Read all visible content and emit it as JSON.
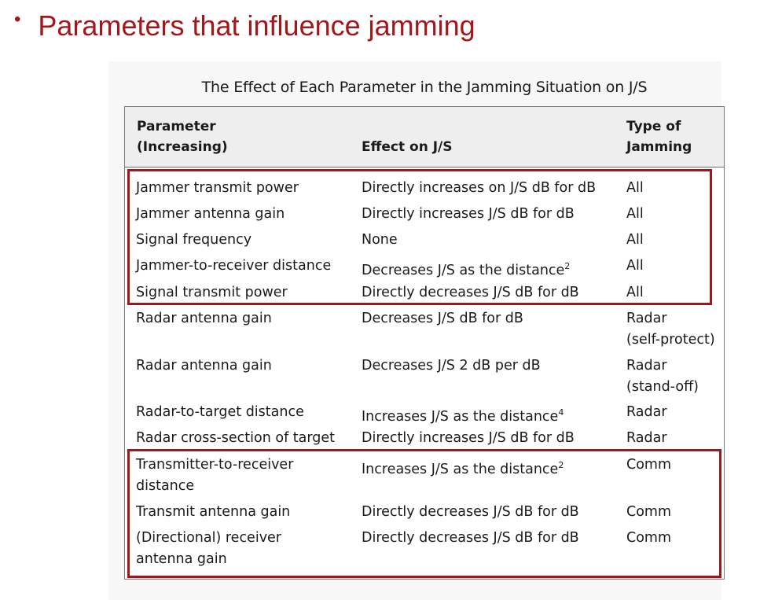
{
  "slide": {
    "bullet_text": "Parameters that influence jamming"
  },
  "table": {
    "caption": "The Effect of Each Parameter in the Jamming Situation on J/S",
    "headers": {
      "param_line1": "Parameter",
      "param_line2": "(Increasing)",
      "effect": "Effect on J/S",
      "type_line1": "Type of",
      "type_line2": "Jamming"
    },
    "rows": [
      {
        "param": [
          "Jammer transmit power"
        ],
        "effect": "Directly increases on J/S dB for dB",
        "sup": "",
        "type": [
          "All"
        ]
      },
      {
        "param": [
          "Jammer antenna gain"
        ],
        "effect": "Directly increases J/S dB for dB",
        "sup": "",
        "type": [
          "All"
        ]
      },
      {
        "param": [
          "Signal frequency"
        ],
        "effect": "None",
        "sup": "",
        "type": [
          "All"
        ]
      },
      {
        "param": [
          "Jammer-to-receiver distance"
        ],
        "effect": "Decreases J/S as the distance",
        "sup": "2",
        "type": [
          "All"
        ]
      },
      {
        "param": [
          "Signal transmit power"
        ],
        "effect": "Directly decreases J/S dB for dB",
        "sup": "",
        "type": [
          "All"
        ]
      },
      {
        "param": [
          "Radar antenna gain"
        ],
        "effect": "Decreases J/S dB for dB",
        "sup": "",
        "type": [
          "Radar",
          "(self-protect)"
        ]
      },
      {
        "param": [
          "Radar antenna gain"
        ],
        "effect": "Decreases J/S 2 dB per dB",
        "sup": "",
        "type": [
          "Radar",
          "(stand-off)"
        ]
      },
      {
        "param": [
          "Radar-to-target distance"
        ],
        "effect": "Increases J/S as the distance",
        "sup": "4",
        "type": [
          "Radar"
        ]
      },
      {
        "param": [
          "Radar cross-section of target"
        ],
        "effect": "Directly increases J/S dB for dB",
        "sup": "",
        "type": [
          "Radar"
        ]
      },
      {
        "param": [
          "Transmitter-to-receiver",
          "distance"
        ],
        "effect": "Increases J/S as the distance",
        "sup": "2",
        "type": [
          "Comm"
        ]
      },
      {
        "param": [
          "Transmit antenna gain"
        ],
        "effect": "Directly decreases J/S dB for dB",
        "sup": "",
        "type": [
          "Comm"
        ]
      },
      {
        "param": [
          "(Directional) receiver",
          "antenna gain"
        ],
        "effect": "Directly decreases J/S dB for dB",
        "sup": "",
        "type": [
          "Comm"
        ]
      }
    ]
  },
  "colors": {
    "accent": "#a3171b",
    "text": "#1a1a1a",
    "header_bg": "#eeeeee"
  }
}
